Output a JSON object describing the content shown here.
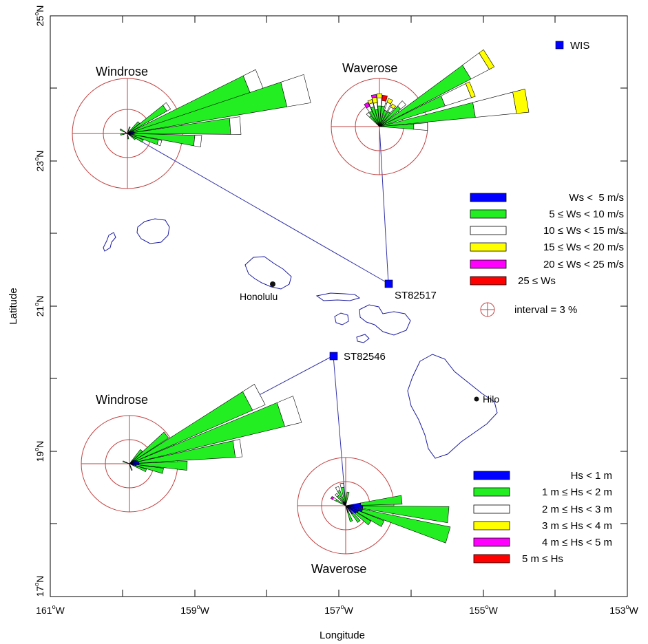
{
  "axes": {
    "xlabel": "Longitude",
    "ylabel": "Latitude",
    "x_ticks": [
      {
        "deg": "161",
        "dir": "W"
      },
      {
        "deg": "159",
        "dir": "W"
      },
      {
        "deg": "157",
        "dir": "W"
      },
      {
        "deg": "155",
        "dir": "W"
      },
      {
        "deg": "153",
        "dir": "W"
      }
    ],
    "y_ticks": [
      {
        "deg": "25",
        "dir": "N"
      },
      {
        "deg": "23",
        "dir": "N"
      },
      {
        "deg": "21",
        "dir": "N"
      },
      {
        "deg": "19",
        "dir": "N"
      },
      {
        "deg": "17",
        "dir": "N"
      }
    ],
    "lon_range": [
      -161,
      -153
    ],
    "lat_range": [
      17,
      25
    ]
  },
  "rose_titles": {
    "windrose_north": "Windrose",
    "waverose_north": "Waverose",
    "windrose_south": "Windrose",
    "waverose_south": "Waverose"
  },
  "stations": {
    "wis_label": "WIS",
    "st1": "ST82517",
    "st2": "ST82546"
  },
  "cities": {
    "honolulu": "Honolulu",
    "hilo": "Hilo"
  },
  "wind_legend": {
    "items": [
      {
        "label": "Ws <  5 m/s",
        "color": "#0000ff"
      },
      {
        "label": "5 ≤ Ws < 10 m/s",
        "color": "#22ee22"
      },
      {
        "label": "10 ≤ Ws < 15 m/s",
        "color": "#ffffff"
      },
      {
        "label": "15 ≤ Ws < 20 m/s",
        "color": "#ffff00"
      },
      {
        "label": "20 ≤ Ws < 25 m/s",
        "color": "#ff00ff"
      },
      {
        "label": "25 ≤ Ws",
        "color": "#ff0000"
      }
    ],
    "interval": "interval = 3 %"
  },
  "wave_legend": {
    "items": [
      {
        "label": "Hs < 1 m",
        "color": "#0000ff"
      },
      {
        "label": "1 m ≤ Hs < 2 m",
        "color": "#22ee22"
      },
      {
        "label": "2 m ≤ Hs < 3 m",
        "color": "#ffffff"
      },
      {
        "label": "3 m ≤ Hs < 4 m",
        "color": "#ffff00"
      },
      {
        "label": "4 m ≤ Hs < 5 m",
        "color": "#ff00ff"
      },
      {
        "label": "5 m ≤ Hs",
        "color": "#ff0000"
      }
    ]
  },
  "colors": {
    "ring": "#c04040",
    "coast": "#1a1aa0",
    "station": "#0000ff",
    "link": "#3333aa"
  }
}
